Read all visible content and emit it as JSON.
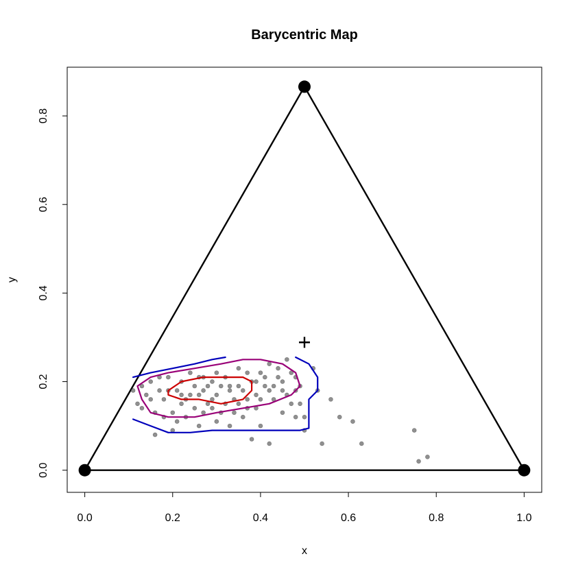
{
  "chart_data": {
    "type": "scatter",
    "title": "Barycentric Map",
    "xlabel": "x",
    "ylabel": "y",
    "xlim": [
      -0.04,
      1.04
    ],
    "ylim": [
      -0.05,
      0.91
    ],
    "x_ticks": [
      "0.0",
      "0.2",
      "0.4",
      "0.6",
      "0.8",
      "1.0"
    ],
    "y_ticks": [
      "0.0",
      "0.2",
      "0.4",
      "0.6",
      "0.8"
    ],
    "grid": false,
    "legend": "none",
    "colors": {
      "triangle": "#000000",
      "points": "#555555",
      "contour_outer": "#0000bb",
      "contour_middle": "#990077",
      "contour_inner": "#cc0000"
    },
    "triangle_vertices": [
      [
        0,
        0
      ],
      [
        1,
        0
      ],
      [
        0.5,
        0.866
      ]
    ],
    "centroid": [
      0.5,
      0.2887
    ],
    "points": [
      [
        0.11,
        0.18
      ],
      [
        0.12,
        0.15
      ],
      [
        0.13,
        0.19
      ],
      [
        0.14,
        0.17
      ],
      [
        0.15,
        0.2
      ],
      [
        0.16,
        0.13
      ],
      [
        0.17,
        0.18
      ],
      [
        0.18,
        0.16
      ],
      [
        0.19,
        0.21
      ],
      [
        0.2,
        0.13
      ],
      [
        0.21,
        0.18
      ],
      [
        0.22,
        0.2
      ],
      [
        0.23,
        0.16
      ],
      [
        0.24,
        0.17
      ],
      [
        0.25,
        0.19
      ],
      [
        0.26,
        0.21
      ],
      [
        0.27,
        0.18
      ],
      [
        0.28,
        0.15
      ],
      [
        0.29,
        0.2
      ],
      [
        0.3,
        0.17
      ],
      [
        0.31,
        0.13
      ],
      [
        0.32,
        0.21
      ],
      [
        0.33,
        0.19
      ],
      [
        0.34,
        0.16
      ],
      [
        0.35,
        0.23
      ],
      [
        0.36,
        0.18
      ],
      [
        0.37,
        0.14
      ],
      [
        0.38,
        0.2
      ],
      [
        0.39,
        0.17
      ],
      [
        0.4,
        0.22
      ],
      [
        0.41,
        0.19
      ],
      [
        0.42,
        0.24
      ],
      [
        0.43,
        0.16
      ],
      [
        0.44,
        0.21
      ],
      [
        0.45,
        0.18
      ],
      [
        0.46,
        0.25
      ],
      [
        0.47,
        0.15
      ],
      [
        0.48,
        0.21
      ],
      [
        0.49,
        0.19
      ],
      [
        0.5,
        0.12
      ],
      [
        0.2,
        0.09
      ],
      [
        0.23,
        0.12
      ],
      [
        0.26,
        0.1
      ],
      [
        0.29,
        0.14
      ],
      [
        0.33,
        0.1
      ],
      [
        0.36,
        0.12
      ],
      [
        0.38,
        0.07
      ],
      [
        0.42,
        0.06
      ],
      [
        0.45,
        0.13
      ],
      [
        0.48,
        0.12
      ],
      [
        0.5,
        0.09
      ],
      [
        0.52,
        0.23
      ],
      [
        0.53,
        0.18
      ],
      [
        0.54,
        0.06
      ],
      [
        0.56,
        0.16
      ],
      [
        0.58,
        0.12
      ],
      [
        0.61,
        0.11
      ],
      [
        0.63,
        0.06
      ],
      [
        0.75,
        0.09
      ],
      [
        0.76,
        0.02
      ],
      [
        0.78,
        0.03
      ],
      [
        0.16,
        0.08
      ],
      [
        0.18,
        0.12
      ],
      [
        0.22,
        0.15
      ],
      [
        0.24,
        0.22
      ],
      [
        0.27,
        0.13
      ],
      [
        0.3,
        0.22
      ],
      [
        0.32,
        0.15
      ],
      [
        0.35,
        0.19
      ],
      [
        0.37,
        0.22
      ],
      [
        0.39,
        0.14
      ],
      [
        0.41,
        0.21
      ],
      [
        0.43,
        0.19
      ],
      [
        0.46,
        0.17
      ],
      [
        0.44,
        0.23
      ],
      [
        0.4,
        0.16
      ],
      [
        0.34,
        0.13
      ],
      [
        0.28,
        0.19
      ],
      [
        0.25,
        0.14
      ],
      [
        0.21,
        0.11
      ],
      [
        0.19,
        0.18
      ],
      [
        0.17,
        0.21
      ],
      [
        0.15,
        0.16
      ],
      [
        0.13,
        0.14
      ],
      [
        0.26,
        0.17
      ],
      [
        0.29,
        0.16
      ],
      [
        0.31,
        0.19
      ],
      [
        0.33,
        0.18
      ],
      [
        0.37,
        0.16
      ],
      [
        0.39,
        0.2
      ],
      [
        0.42,
        0.18
      ],
      [
        0.47,
        0.22
      ],
      [
        0.49,
        0.15
      ],
      [
        0.4,
        0.1
      ],
      [
        0.3,
        0.11
      ],
      [
        0.27,
        0.21
      ],
      [
        0.22,
        0.17
      ],
      [
        0.35,
        0.15
      ],
      [
        0.45,
        0.2
      ],
      [
        0.48,
        0.18
      ]
    ],
    "contours": [
      {
        "level": "outer",
        "segments": [
          [
            [
              0.11,
              0.21
            ],
            [
              0.15,
              0.22
            ],
            [
              0.2,
              0.23
            ],
            [
              0.25,
              0.24
            ],
            [
              0.29,
              0.25
            ],
            [
              0.32,
              0.255
            ]
          ],
          [
            [
              0.48,
              0.255
            ],
            [
              0.51,
              0.24
            ],
            [
              0.53,
              0.21
            ],
            [
              0.53,
              0.18
            ],
            [
              0.51,
              0.16
            ],
            [
              0.51,
              0.12
            ],
            [
              0.51,
              0.095
            ],
            [
              0.49,
              0.09
            ],
            [
              0.42,
              0.09
            ],
            [
              0.35,
              0.09
            ],
            [
              0.29,
              0.09
            ],
            [
              0.24,
              0.085
            ],
            [
              0.19,
              0.085
            ],
            [
              0.15,
              0.1
            ],
            [
              0.11,
              0.115
            ]
          ]
        ]
      },
      {
        "level": "middle",
        "segments": [
          [
            [
              0.12,
              0.19
            ],
            [
              0.15,
              0.21
            ],
            [
              0.19,
              0.22
            ],
            [
              0.25,
              0.23
            ],
            [
              0.31,
              0.24
            ],
            [
              0.36,
              0.25
            ],
            [
              0.4,
              0.25
            ],
            [
              0.45,
              0.24
            ],
            [
              0.48,
              0.22
            ],
            [
              0.49,
              0.19
            ],
            [
              0.47,
              0.17
            ],
            [
              0.42,
              0.15
            ],
            [
              0.36,
              0.14
            ],
            [
              0.3,
              0.13
            ],
            [
              0.25,
              0.12
            ],
            [
              0.19,
              0.12
            ],
            [
              0.15,
              0.13
            ],
            [
              0.13,
              0.16
            ],
            [
              0.12,
              0.19
            ]
          ]
        ]
      },
      {
        "level": "inner",
        "segments": [
          [
            [
              0.19,
              0.18
            ],
            [
              0.22,
              0.2
            ],
            [
              0.27,
              0.21
            ],
            [
              0.32,
              0.21
            ],
            [
              0.36,
              0.21
            ],
            [
              0.38,
              0.2
            ],
            [
              0.38,
              0.18
            ],
            [
              0.36,
              0.16
            ],
            [
              0.31,
              0.15
            ],
            [
              0.26,
              0.16
            ],
            [
              0.22,
              0.16
            ],
            [
              0.19,
              0.17
            ],
            [
              0.19,
              0.18
            ]
          ]
        ]
      }
    ]
  }
}
